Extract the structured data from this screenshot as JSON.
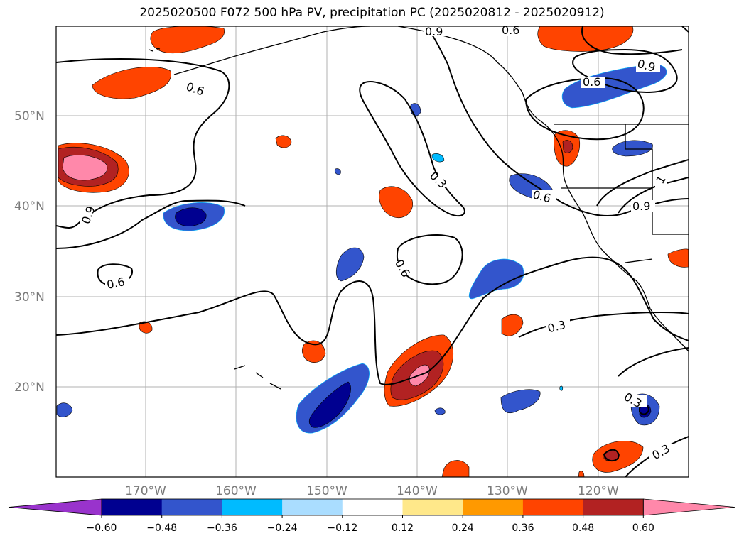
{
  "title": "2025020500 F072 500 hPa PV, precipitation PC (2025020812 - 2025020912)",
  "map": {
    "lat_labels": [
      "50°N",
      "40°N",
      "30°N",
      "20°N"
    ],
    "lon_labels": [
      "170°W",
      "160°W",
      "150°W",
      "140°W",
      "130°W",
      "120°W"
    ],
    "contour_labels": [
      "0.6",
      "0.9",
      "0.6",
      "0.9",
      "0.3",
      "0.6",
      "0.6",
      "0.6",
      "0.6",
      "0.9",
      "0.9",
      "1",
      "0.3",
      "0.3",
      "0.3"
    ]
  },
  "colorbar": {
    "ticks": [
      "−0.60",
      "−0.48",
      "−0.36",
      "−0.24",
      "−0.12",
      "0.12",
      "0.24",
      "0.36",
      "0.48",
      "0.60"
    ],
    "colors": [
      "#9933cc",
      "#000090",
      "#3355cc",
      "#00bbff",
      "#aaddff",
      "#ffffff",
      "#ffe88a",
      "#ff9900",
      "#ff4400",
      "#b22222",
      "#ff88aa"
    ]
  }
}
